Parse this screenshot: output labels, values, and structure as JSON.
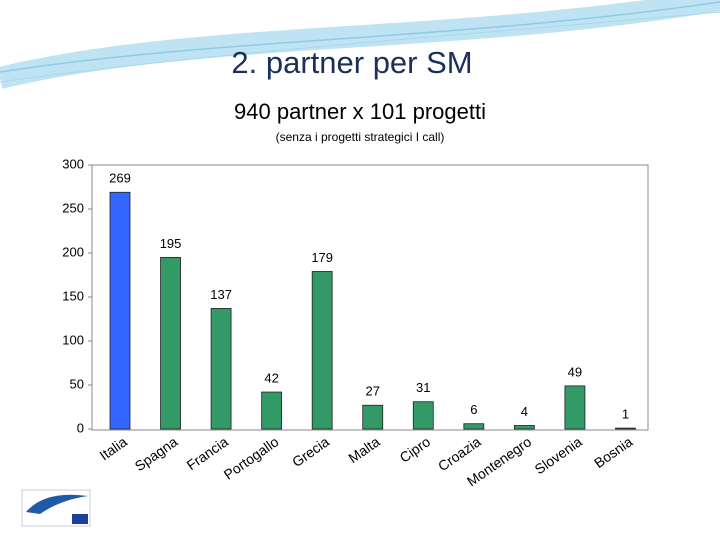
{
  "chart_data": {
    "type": "bar",
    "title": "2. partner per SM",
    "subtitle": "940 partner x  101 progetti",
    "note": "(senza i progetti strategici I call)",
    "categories": [
      "Italia",
      "Spagna",
      "Francia",
      "Portogallo",
      "Grecia",
      "Malta",
      "Cipro",
      "Croazia",
      "Montenegro",
      "Slovenia",
      "Bosnia"
    ],
    "values": [
      269,
      195,
      137,
      42,
      179,
      27,
      31,
      6,
      4,
      49,
      1
    ],
    "colors": [
      "#3366ff",
      "#339966",
      "#339966",
      "#339966",
      "#339966",
      "#339966",
      "#339966",
      "#339966",
      "#339966",
      "#339966",
      "#339966"
    ],
    "ylim": [
      0,
      300
    ],
    "yticks": [
      0,
      50,
      100,
      150,
      200,
      250,
      300
    ],
    "grid": false
  }
}
